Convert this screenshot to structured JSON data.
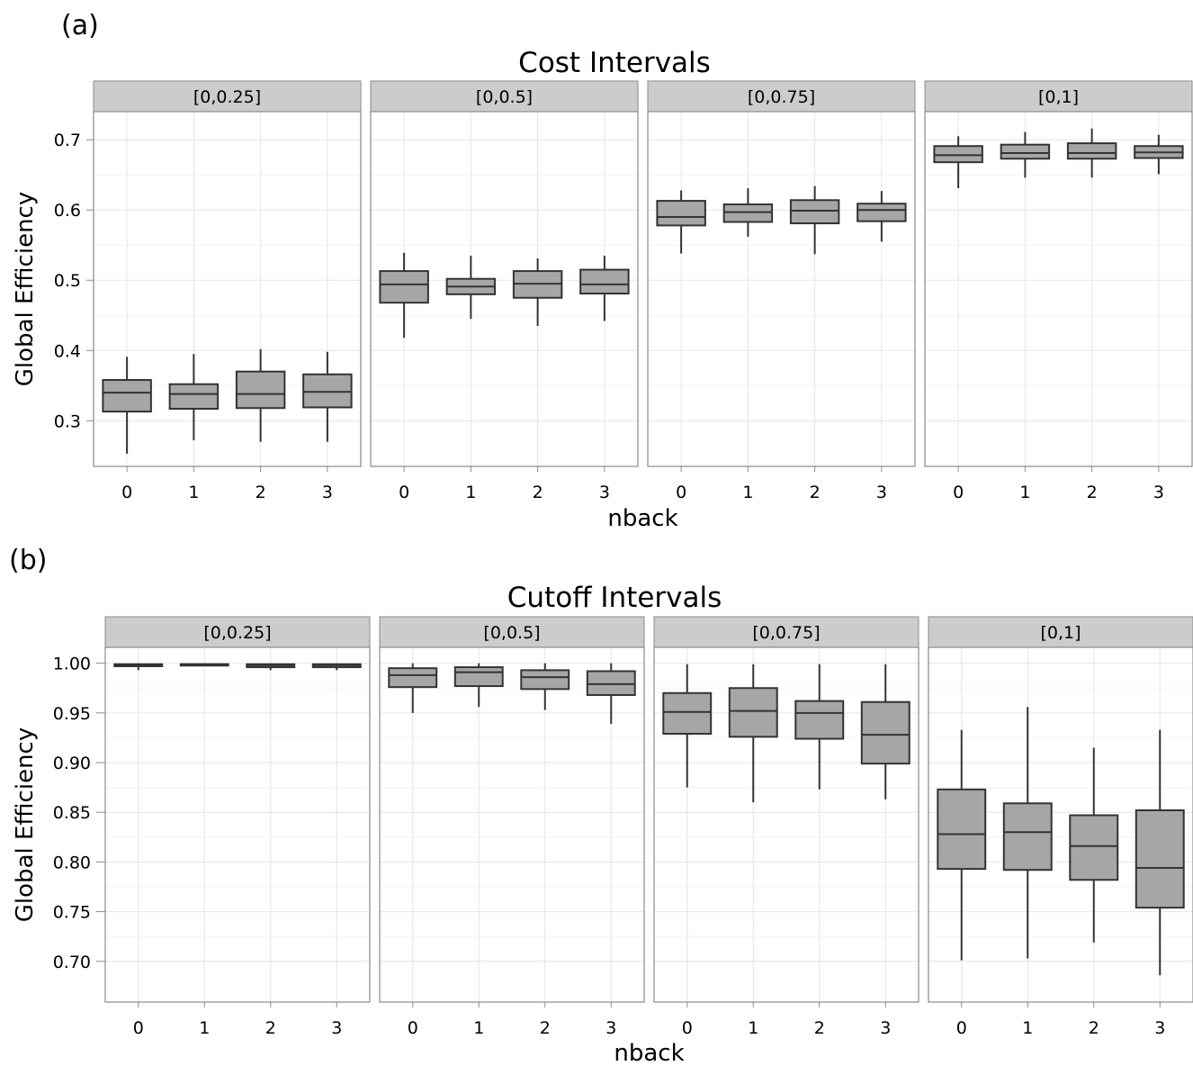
{
  "chart_data": [
    {
      "type": "boxplot",
      "panel_label": "(a)",
      "title": "Cost Intervals",
      "xlabel": "nback",
      "ylabel": "Global Efficiency",
      "ylim": [
        0.235,
        0.74
      ],
      "yticks": [
        0.3,
        0.4,
        0.5,
        0.6,
        0.7
      ],
      "ytick_labels": [
        "0.3",
        "0.4",
        "0.5",
        "0.6",
        "0.7"
      ],
      "categories": [
        "0",
        "1",
        "2",
        "3"
      ],
      "grid": true,
      "facets": [
        {
          "label": "[0,0.25]",
          "boxes": [
            {
              "x": "0",
              "min": 0.253,
              "q1": 0.313,
              "median": 0.34,
              "q3": 0.358,
              "max": 0.391
            },
            {
              "x": "1",
              "min": 0.272,
              "q1": 0.317,
              "median": 0.338,
              "q3": 0.352,
              "max": 0.395
            },
            {
              "x": "2",
              "min": 0.27,
              "q1": 0.318,
              "median": 0.338,
              "q3": 0.37,
              "max": 0.402
            },
            {
              "x": "3",
              "min": 0.27,
              "q1": 0.319,
              "median": 0.341,
              "q3": 0.366,
              "max": 0.398
            }
          ]
        },
        {
          "label": "[0,0.5]",
          "boxes": [
            {
              "x": "0",
              "min": 0.418,
              "q1": 0.468,
              "median": 0.494,
              "q3": 0.513,
              "max": 0.539
            },
            {
              "x": "1",
              "min": 0.445,
              "q1": 0.48,
              "median": 0.491,
              "q3": 0.502,
              "max": 0.535
            },
            {
              "x": "2",
              "min": 0.435,
              "q1": 0.475,
              "median": 0.495,
              "q3": 0.513,
              "max": 0.531
            },
            {
              "x": "3",
              "min": 0.442,
              "q1": 0.481,
              "median": 0.494,
              "q3": 0.515,
              "max": 0.535
            }
          ]
        },
        {
          "label": "[0,0.75]",
          "boxes": [
            {
              "x": "0",
              "min": 0.538,
              "q1": 0.578,
              "median": 0.59,
              "q3": 0.613,
              "max": 0.628
            },
            {
              "x": "1",
              "min": 0.562,
              "q1": 0.583,
              "median": 0.597,
              "q3": 0.608,
              "max": 0.631
            },
            {
              "x": "2",
              "min": 0.537,
              "q1": 0.581,
              "median": 0.599,
              "q3": 0.614,
              "max": 0.634
            },
            {
              "x": "3",
              "min": 0.555,
              "q1": 0.584,
              "median": 0.6,
              "q3": 0.609,
              "max": 0.627
            }
          ]
        },
        {
          "label": "[0,1]",
          "boxes": [
            {
              "x": "0",
              "min": 0.631,
              "q1": 0.668,
              "median": 0.678,
              "q3": 0.691,
              "max": 0.705
            },
            {
              "x": "1",
              "min": 0.646,
              "q1": 0.673,
              "median": 0.681,
              "q3": 0.693,
              "max": 0.711
            },
            {
              "x": "2",
              "min": 0.646,
              "q1": 0.673,
              "median": 0.681,
              "q3": 0.695,
              "max": 0.716
            },
            {
              "x": "3",
              "min": 0.651,
              "q1": 0.674,
              "median": 0.682,
              "q3": 0.691,
              "max": 0.707
            }
          ]
        }
      ]
    },
    {
      "type": "boxplot",
      "panel_label": "(b)",
      "title": "Cutoff Intervals",
      "xlabel": "nback",
      "ylabel": "Global Efficiency",
      "ylim": [
        0.659,
        1.016
      ],
      "yticks": [
        0.7,
        0.75,
        0.8,
        0.85,
        0.9,
        0.95,
        1.0
      ],
      "ytick_labels": [
        "0.70",
        "0.75",
        "0.80",
        "0.85",
        "0.90",
        "0.95",
        "1.00"
      ],
      "categories": [
        "0",
        "1",
        "2",
        "3"
      ],
      "grid": true,
      "facets": [
        {
          "label": "[0,0.25]",
          "boxes": [
            {
              "x": "0",
              "min": 0.993,
              "q1": 0.997,
              "median": 0.998,
              "q3": 0.999,
              "max": 1.0
            },
            {
              "x": "1",
              "min": 0.997,
              "q1": 0.998,
              "median": 0.999,
              "q3": 0.999,
              "max": 1.0
            },
            {
              "x": "2",
              "min": 0.993,
              "q1": 0.996,
              "median": 0.998,
              "q3": 0.999,
              "max": 1.0
            },
            {
              "x": "3",
              "min": 0.993,
              "q1": 0.996,
              "median": 0.998,
              "q3": 0.999,
              "max": 1.0
            }
          ]
        },
        {
          "label": "[0,0.5]",
          "boxes": [
            {
              "x": "0",
              "min": 0.95,
              "q1": 0.976,
              "median": 0.988,
              "q3": 0.995,
              "max": 1.0
            },
            {
              "x": "1",
              "min": 0.956,
              "q1": 0.977,
              "median": 0.991,
              "q3": 0.996,
              "max": 1.0
            },
            {
              "x": "2",
              "min": 0.953,
              "q1": 0.974,
              "median": 0.986,
              "q3": 0.993,
              "max": 1.0
            },
            {
              "x": "3",
              "min": 0.939,
              "q1": 0.968,
              "median": 0.979,
              "q3": 0.992,
              "max": 1.0
            }
          ]
        },
        {
          "label": "[0,0.75]",
          "boxes": [
            {
              "x": "0",
              "min": 0.875,
              "q1": 0.929,
              "median": 0.951,
              "q3": 0.97,
              "max": 0.999
            },
            {
              "x": "1",
              "min": 0.86,
              "q1": 0.926,
              "median": 0.952,
              "q3": 0.975,
              "max": 0.999
            },
            {
              "x": "2",
              "min": 0.873,
              "q1": 0.924,
              "median": 0.95,
              "q3": 0.962,
              "max": 0.999
            },
            {
              "x": "3",
              "min": 0.863,
              "q1": 0.899,
              "median": 0.928,
              "q3": 0.961,
              "max": 0.999
            }
          ]
        },
        {
          "label": "[0,1]",
          "boxes": [
            {
              "x": "0",
              "min": 0.701,
              "q1": 0.793,
              "median": 0.828,
              "q3": 0.873,
              "max": 0.933
            },
            {
              "x": "1",
              "min": 0.703,
              "q1": 0.792,
              "median": 0.83,
              "q3": 0.859,
              "max": 0.956
            },
            {
              "x": "2",
              "min": 0.719,
              "q1": 0.782,
              "median": 0.816,
              "q3": 0.847,
              "max": 0.915
            },
            {
              "x": "3",
              "min": 0.686,
              "q1": 0.754,
              "median": 0.794,
              "q3": 0.852,
              "max": 0.933
            }
          ]
        }
      ]
    }
  ],
  "colors": {
    "box_fill": "#a6a6a6",
    "line": "#333333",
    "strip_fill": "#cccccc",
    "strip_border": "#8a8a8a",
    "grid_major": "#e6e6e6",
    "grid_minor": "#f3f3f3",
    "panel_border": "#8a8a8a"
  }
}
